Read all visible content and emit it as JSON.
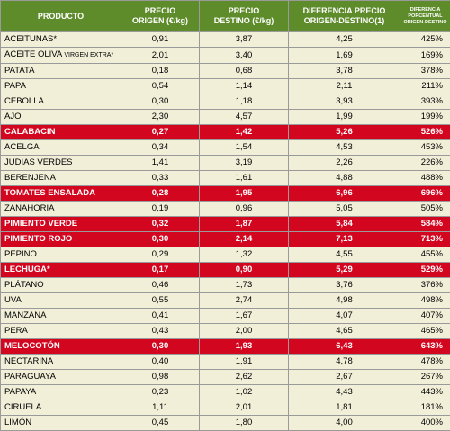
{
  "headers": {
    "producto": "PRODUCTO",
    "origen": [
      "PRECIO",
      "ORIGEN (€/kg)"
    ],
    "destino": [
      "PRECIO",
      "DESTINO (€/kg)"
    ],
    "diferencia": [
      "DIFERENCIA PRECIO",
      "ORIGEN-DESTINO(1)"
    ],
    "porcentual": [
      "DIFERENCIA",
      "PORCENTUAL",
      "ORIGEN-DESTINO"
    ]
  },
  "rows": [
    {
      "producto": "ACEITUNAS*",
      "extra": "",
      "origen": "0,91",
      "destino": "3,87",
      "diferencia": "4,25",
      "porcentaje": "425%",
      "highlight": false
    },
    {
      "producto": "ACEITE OLIVA ",
      "extra": "VIRGEN EXTRA*",
      "origen": "2,01",
      "destino": "3,40",
      "diferencia": "1,69",
      "porcentaje": "169%",
      "highlight": false
    },
    {
      "producto": "PATATA",
      "extra": "",
      "origen": "0,18",
      "destino": "0,68",
      "diferencia": "3,78",
      "porcentaje": "378%",
      "highlight": false
    },
    {
      "producto": "PAPA",
      "extra": "",
      "origen": "0,54",
      "destino": "1,14",
      "diferencia": "2,11",
      "porcentaje": "211%",
      "highlight": false
    },
    {
      "producto": "CEBOLLA",
      "extra": "",
      "origen": "0,30",
      "destino": "1,18",
      "diferencia": "3,93",
      "porcentaje": "393%",
      "highlight": false
    },
    {
      "producto": "AJO",
      "extra": "",
      "origen": "2,30",
      "destino": "4,57",
      "diferencia": "1,99",
      "porcentaje": "199%",
      "highlight": false
    },
    {
      "producto": "CALABACIN",
      "extra": "",
      "origen": "0,27",
      "destino": "1,42",
      "diferencia": "5,26",
      "porcentaje": "526%",
      "highlight": true
    },
    {
      "producto": "ACELGA",
      "extra": "",
      "origen": "0,34",
      "destino": "1,54",
      "diferencia": "4,53",
      "porcentaje": "453%",
      "highlight": false
    },
    {
      "producto": "JUDIAS VERDES",
      "extra": "",
      "origen": "1,41",
      "destino": "3,19",
      "diferencia": "2,26",
      "porcentaje": "226%",
      "highlight": false
    },
    {
      "producto": "BERENJENA",
      "extra": "",
      "origen": "0,33",
      "destino": "1,61",
      "diferencia": "4,88",
      "porcentaje": "488%",
      "highlight": false
    },
    {
      "producto": "TOMATES ENSALADA",
      "extra": "",
      "origen": "0,28",
      "destino": "1,95",
      "diferencia": "6,96",
      "porcentaje": "696%",
      "highlight": true
    },
    {
      "producto": "ZANAHORIA",
      "extra": "",
      "origen": "0,19",
      "destino": "0,96",
      "diferencia": "5,05",
      "porcentaje": "505%",
      "highlight": false
    },
    {
      "producto": "PIMIENTO VERDE",
      "extra": "",
      "origen": "0,32",
      "destino": "1,87",
      "diferencia": "5,84",
      "porcentaje": "584%",
      "highlight": true
    },
    {
      "producto": "PIMIENTO ROJO",
      "extra": "",
      "origen": "0,30",
      "destino": "2,14",
      "diferencia": "7,13",
      "porcentaje": "713%",
      "highlight": true
    },
    {
      "producto": "PEPINO",
      "extra": "",
      "origen": "0,29",
      "destino": "1,32",
      "diferencia": "4,55",
      "porcentaje": "455%",
      "highlight": false
    },
    {
      "producto": "LECHUGA*",
      "extra": "",
      "origen": "0,17",
      "destino": "0,90",
      "diferencia": "5,29",
      "porcentaje": "529%",
      "highlight": true
    },
    {
      "producto": "PLÁTANO",
      "extra": "",
      "origen": "0,46",
      "destino": "1,73",
      "diferencia": "3,76",
      "porcentaje": "376%",
      "highlight": false
    },
    {
      "producto": "UVA",
      "extra": "",
      "origen": "0,55",
      "destino": "2,74",
      "diferencia": "4,98",
      "porcentaje": "498%",
      "highlight": false
    },
    {
      "producto": "MANZANA",
      "extra": "",
      "origen": "0,41",
      "destino": "1,67",
      "diferencia": "4,07",
      "porcentaje": "407%",
      "highlight": false
    },
    {
      "producto": "PERA",
      "extra": "",
      "origen": "0,43",
      "destino": "2,00",
      "diferencia": "4,65",
      "porcentaje": "465%",
      "highlight": false
    },
    {
      "producto": "MELOCOTÓN",
      "extra": "",
      "origen": "0,30",
      "destino": "1,93",
      "diferencia": "6,43",
      "porcentaje": "643%",
      "highlight": true
    },
    {
      "producto": "NECTARINA",
      "extra": "",
      "origen": "0,40",
      "destino": "1,91",
      "diferencia": "4,78",
      "porcentaje": "478%",
      "highlight": false
    },
    {
      "producto": "PARAGUAYA",
      "extra": "",
      "origen": "0,98",
      "destino": "2,62",
      "diferencia": "2,67",
      "porcentaje": "267%",
      "highlight": false
    },
    {
      "producto": "PAPAYA",
      "extra": "",
      "origen": "0,23",
      "destino": "1,02",
      "diferencia": "4,43",
      "porcentaje": "443%",
      "highlight": false
    },
    {
      "producto": "CIRUELA",
      "extra": "",
      "origen": "1,11",
      "destino": "2,01",
      "diferencia": "1,81",
      "porcentaje": "181%",
      "highlight": false
    },
    {
      "producto": "LIMÓN",
      "extra": "",
      "origen": "0,45",
      "destino": "1,80",
      "diferencia": "4,00",
      "porcentaje": "400%",
      "highlight": false
    }
  ]
}
